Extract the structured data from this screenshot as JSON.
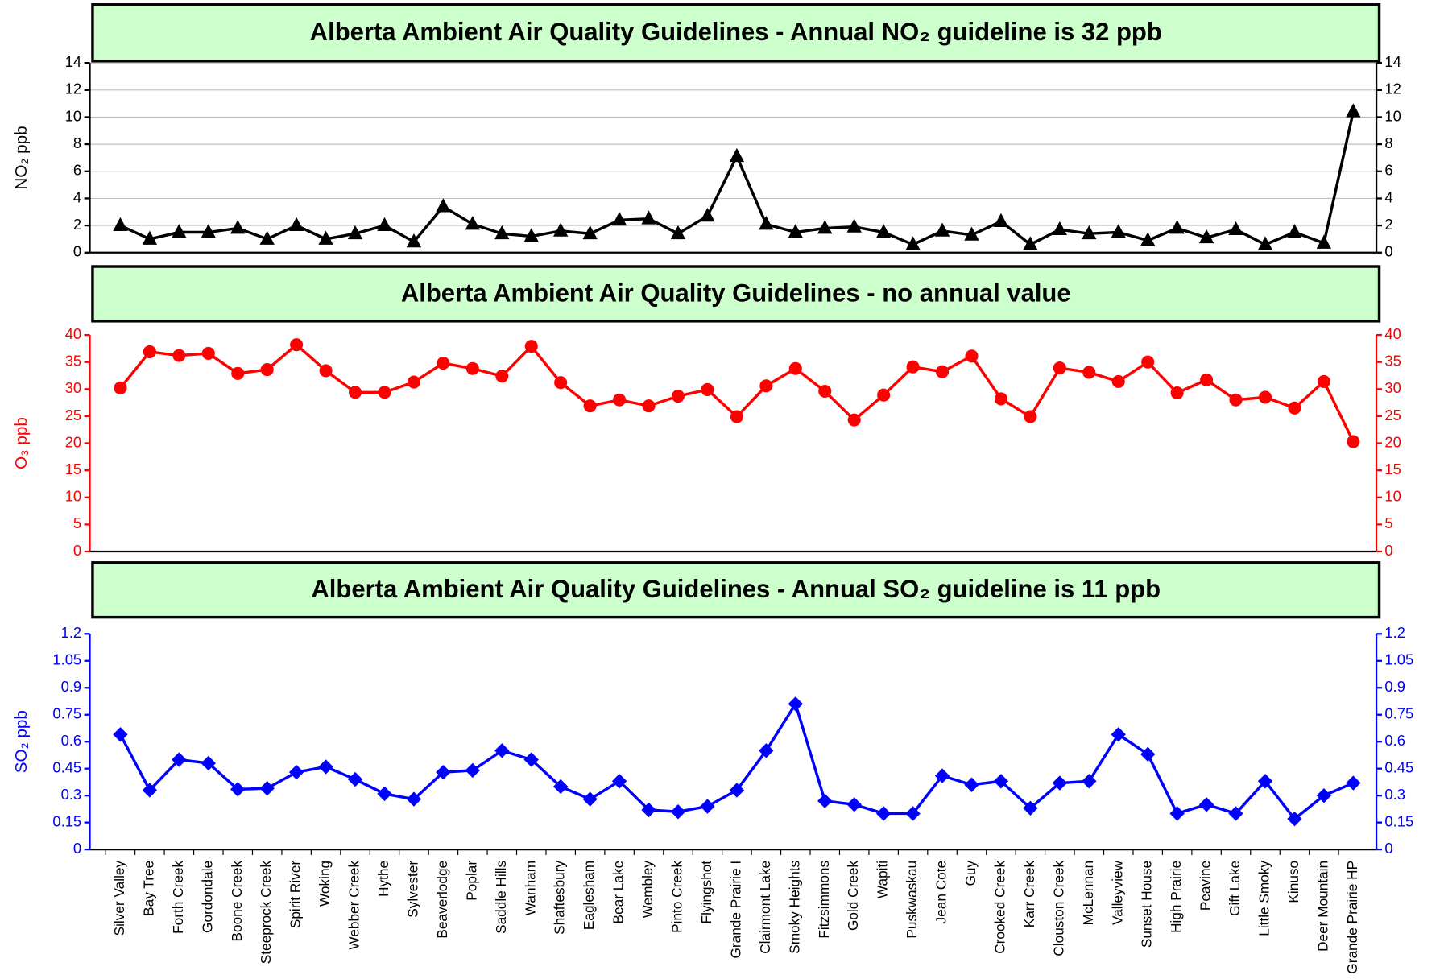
{
  "chart_data": [
    {
      "type": "line",
      "title": "Alberta Ambient Air Quality Guidelines - Annual NO₂ guideline is 32 ppb",
      "ylabel": "NO₂  ppb",
      "color": "#000000",
      "marker": "triangle",
      "grid": true,
      "ylim": [
        0,
        14
      ],
      "yticks": [
        0,
        2,
        4,
        6,
        8,
        10,
        12,
        14
      ],
      "values": [
        2.0,
        1.0,
        1.5,
        1.5,
        1.8,
        1.0,
        2.0,
        1.0,
        1.4,
        2.0,
        0.8,
        3.4,
        2.1,
        1.4,
        1.2,
        1.6,
        1.4,
        2.4,
        2.5,
        1.4,
        2.7,
        7.1,
        2.1,
        1.5,
        1.8,
        1.9,
        1.5,
        0.6,
        1.6,
        1.3,
        2.3,
        0.6,
        1.7,
        1.4,
        1.5,
        0.9,
        1.8,
        1.1,
        1.7,
        0.6,
        1.5,
        0.7,
        10.4
      ]
    },
    {
      "type": "line",
      "title": "Alberta Ambient Air Quality Guidelines - no annual value",
      "ylabel": "O₃  ppb",
      "color": "#ff0000",
      "marker": "circle",
      "grid": false,
      "ylim": [
        0,
        40
      ],
      "yticks": [
        0,
        5,
        10,
        15,
        20,
        25,
        30,
        35,
        40
      ],
      "values": [
        30.2,
        36.9,
        36.2,
        36.6,
        32.9,
        33.6,
        38.2,
        33.4,
        29.4,
        29.4,
        31.3,
        34.8,
        33.8,
        32.4,
        37.9,
        31.2,
        26.9,
        28.0,
        26.9,
        28.7,
        29.9,
        24.9,
        30.6,
        33.8,
        29.6,
        24.3,
        28.9,
        34.1,
        33.2,
        36.1,
        28.2,
        24.9,
        33.9,
        33.1,
        31.4,
        35.0,
        29.3,
        31.7,
        28.0,
        28.5,
        26.5,
        31.4,
        20.3
      ]
    },
    {
      "type": "line",
      "title": "Alberta Ambient Air Quality Guidelines - Annual SO₂ guideline is 11 ppb",
      "ylabel": "SO₂  ppb",
      "color": "#0000ff",
      "marker": "diamond",
      "grid": false,
      "ylim": [
        0,
        1.2
      ],
      "yticks": [
        0,
        0.15,
        0.3,
        0.45,
        0.6,
        0.75,
        0.9,
        1.05,
        1.2
      ],
      "categories": [
        "Silver Valley",
        "Bay Tree",
        "Forth Creek",
        "Gordondale",
        "Boone Creek",
        "Steeprock Creek",
        "Spirit River",
        "Woking",
        "Webber Creek",
        "Hythe",
        "Sylvester",
        "Beaverlodge",
        "Poplar",
        "Saddle Hills",
        "Wanham",
        "Shaftesbury",
        "Eaglesham",
        "Bear Lake",
        "Wembley",
        "Pinto Creek",
        "Flyingshot",
        "Grande Prairie I",
        "Clairmont Lake",
        "Smoky Heights",
        "Fitzsimmons",
        "Gold Creek",
        "Wapiti",
        "Puskwaskau",
        "Jean Cote",
        "Guy",
        "Crooked Creek",
        "Karr Creek",
        "Clouston Creek",
        "McLennan",
        "Valleyview",
        "Sunset House",
        "High Prairie",
        "Peavine",
        "Gift Lake",
        "Little Smoky",
        "Kinuso",
        "Deer Mountain",
        "Grande Prairie HP"
      ],
      "values": [
        0.64,
        0.33,
        0.5,
        0.48,
        0.335,
        0.34,
        0.43,
        0.46,
        0.39,
        0.31,
        0.28,
        0.43,
        0.44,
        0.55,
        0.5,
        0.35,
        0.28,
        0.38,
        0.22,
        0.21,
        0.24,
        0.33,
        0.55,
        0.81,
        0.27,
        0.25,
        0.2,
        0.2,
        0.41,
        0.36,
        0.38,
        0.23,
        0.37,
        0.38,
        0.64,
        0.53,
        0.2,
        0.25,
        0.2,
        0.38,
        0.17,
        0.3,
        0.37
      ]
    }
  ]
}
